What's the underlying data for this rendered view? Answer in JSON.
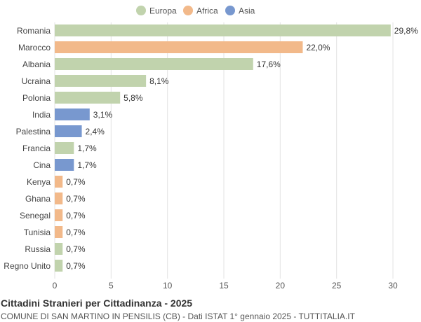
{
  "footer": {
    "title": "Cittadini Stranieri per Cittadinanza - 2025",
    "subtitle": "COMUNE DI SAN MARTINO IN PENSILIS (CB) - Dati ISTAT 1° gennaio 2025 - TUTTITALIA.IT"
  },
  "chart_data": {
    "type": "bar",
    "orientation": "horizontal",
    "legend": {
      "placement": "top-center",
      "entries": [
        {
          "name": "Europa",
          "color": "#c1d3ad"
        },
        {
          "name": "Africa",
          "color": "#f2b98a"
        },
        {
          "name": "Asia",
          "color": "#7898cf"
        }
      ]
    },
    "categories": [
      "Romania",
      "Marocco",
      "Albania",
      "Ucraina",
      "Polonia",
      "India",
      "Palestina",
      "Francia",
      "Cina",
      "Kenya",
      "Ghana",
      "Senegal",
      "Tunisia",
      "Russia",
      "Regno Unito"
    ],
    "values": [
      29.8,
      22.0,
      17.6,
      8.1,
      5.8,
      3.1,
      2.4,
      1.7,
      1.7,
      0.7,
      0.7,
      0.7,
      0.7,
      0.7,
      0.7
    ],
    "value_labels": [
      "29,8%",
      "22,0%",
      "17,6%",
      "8,1%",
      "5,8%",
      "3,1%",
      "2,4%",
      "1,7%",
      "1,7%",
      "0,7%",
      "0,7%",
      "0,7%",
      "0,7%",
      "0,7%",
      "0,7%"
    ],
    "groups": [
      "Europa",
      "Africa",
      "Europa",
      "Europa",
      "Europa",
      "Asia",
      "Asia",
      "Europa",
      "Asia",
      "Africa",
      "Africa",
      "Africa",
      "Africa",
      "Europa",
      "Europa"
    ],
    "xlim": [
      0,
      30
    ],
    "xticks": [
      0,
      5,
      10,
      15,
      20,
      25,
      30
    ],
    "grid": true
  }
}
